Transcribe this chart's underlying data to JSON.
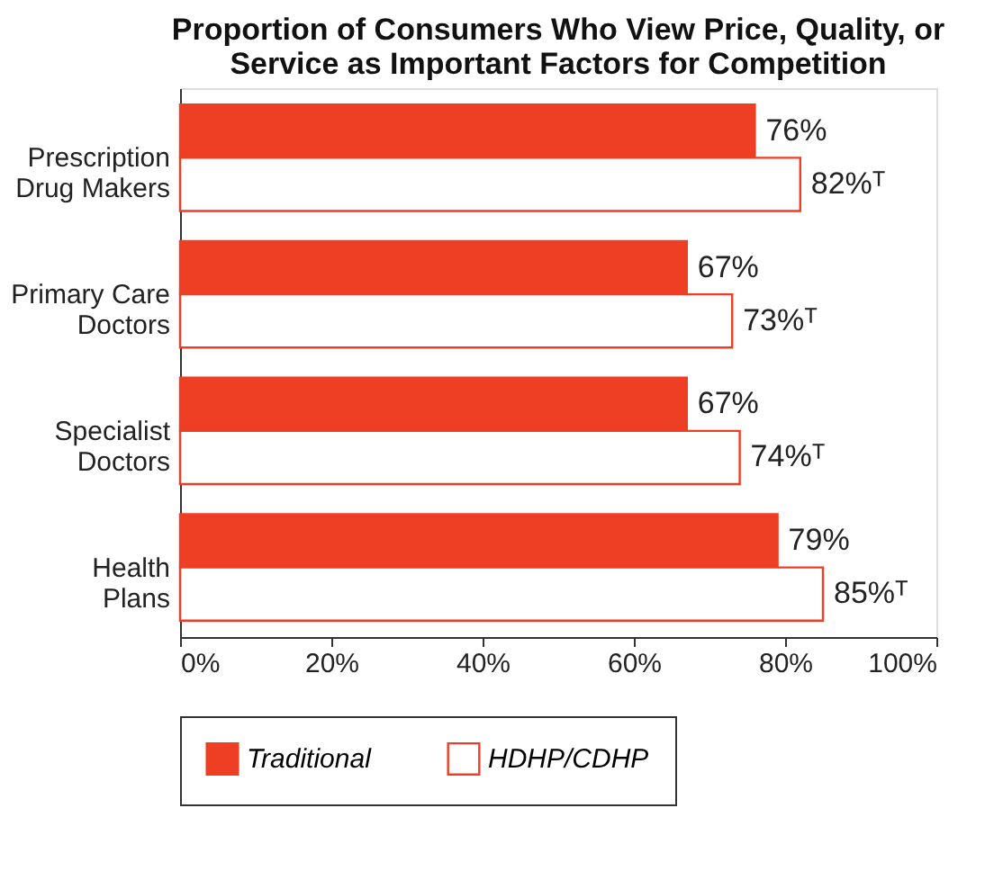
{
  "chart_data": {
    "type": "bar",
    "orientation": "horizontal",
    "title": "Proportion of Consumers Who View Price, Quality, or\nService as Important Factors for Competition",
    "categories": [
      "Prescription\nDrug Makers",
      "Primary Care\nDoctors",
      "Specialist\nDoctors",
      "Health\nPlans"
    ],
    "series": [
      {
        "name": "Traditional",
        "color": "#ee3e23",
        "values": [
          76,
          67,
          67,
          79
        ],
        "value_labels": [
          "76%",
          "67%",
          "67%",
          "79%"
        ]
      },
      {
        "name": "HDHP/CDHP",
        "color": "#ffffff",
        "values": [
          82,
          73,
          74,
          85
        ],
        "value_labels": [
          "82%ᵀ",
          "73%ᵀ",
          "74%ᵀ",
          "85%ᵀ"
        ]
      }
    ],
    "xlim": [
      0,
      100
    ],
    "xticks": [
      {
        "value": 0,
        "label": "0%"
      },
      {
        "value": 20,
        "label": "20%"
      },
      {
        "value": 40,
        "label": "40%"
      },
      {
        "value": 60,
        "label": "60%"
      },
      {
        "value": 80,
        "label": "80%"
      },
      {
        "value": 100,
        "label": "100%"
      }
    ],
    "grid": false,
    "legend": "bottom"
  }
}
